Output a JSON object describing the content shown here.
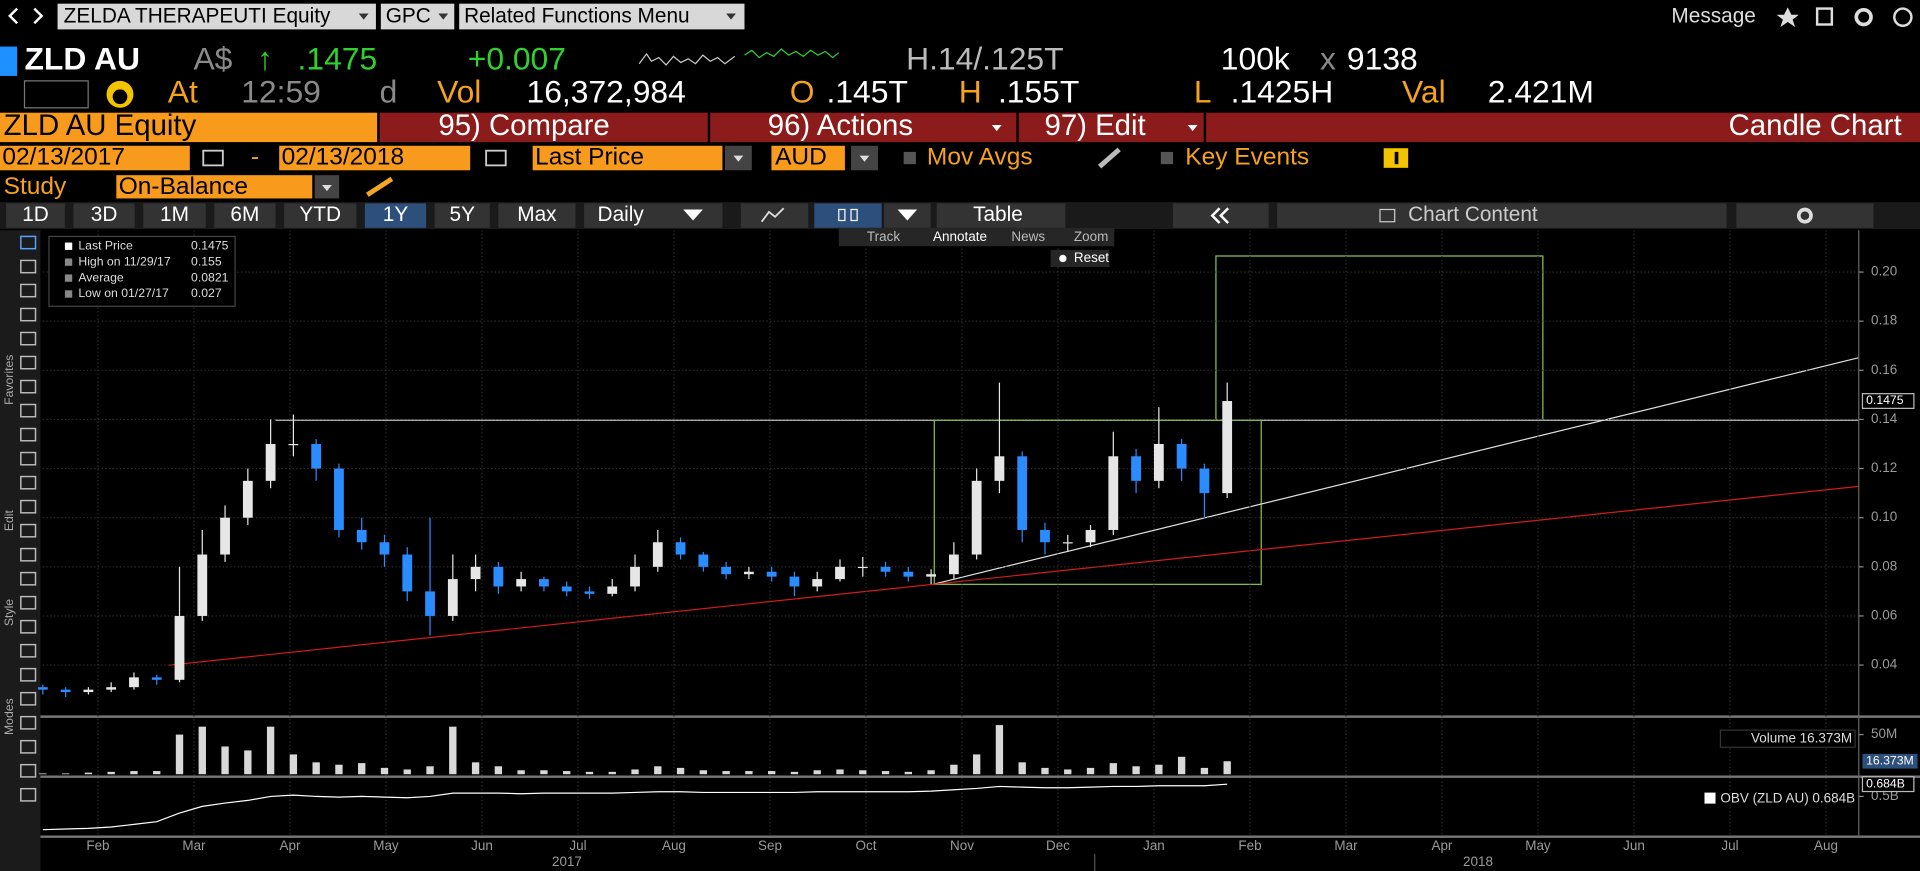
{
  "toolbar": {
    "security": "ZELDA THERAPEUTI Equity",
    "source": "GPC",
    "menu": "Related Functions Menu",
    "message": "Message"
  },
  "quote": {
    "ticker": "ZLD AU",
    "currency": "A$",
    "arrow": "↑",
    "last": ".1475",
    "change": "+0.007",
    "bid_ask": "H.14/.125T",
    "size": "100k",
    "x": "x",
    "size2": "9138",
    "at": "At",
    "time": "12:59",
    "d": "d",
    "vol_label": "Vol",
    "volume": "16,372,984",
    "open_label": "O",
    "open": ".145T",
    "high_label": "H",
    "high": ".155T",
    "low_label": "L",
    "low": ".1425H",
    "val_label": "Val",
    "value": "2.421M"
  },
  "function_bar": {
    "security": "ZLD AU Equity",
    "compare": "95) Compare",
    "actions": "96) Actions",
    "edit": "97) Edit",
    "title": "Candle Chart"
  },
  "settings": {
    "start": "02/13/2017",
    "dash": "-",
    "end": "02/13/2018",
    "field": "Last Price",
    "currency": "AUD",
    "mov_avgs": "Mov Avgs",
    "key_events": "Key Events",
    "study_label": "Study",
    "study": "On-Balance"
  },
  "tabs": [
    "1D",
    "3D",
    "1M",
    "6M",
    "YTD",
    "1Y",
    "5Y",
    "Max"
  ],
  "period": "Daily",
  "table": "Table",
  "chart_content": "Chart Content",
  "chart_tools": [
    "Track",
    "Annotate",
    "News",
    "Zoom"
  ],
  "reset": "Reset",
  "side_labels": [
    "Favorites",
    "Edit",
    "Style",
    "Modes"
  ],
  "chart_data": {
    "type": "candlestick",
    "legend": [
      {
        "label": "Last Price",
        "value": "0.1475"
      },
      {
        "label": "High on 11/29/17",
        "value": "0.155"
      },
      {
        "label": "Average",
        "value": "0.0821"
      },
      {
        "label": "Low on 01/27/17",
        "value": "0.027"
      }
    ],
    "open": [
      0.031,
      0.03,
      0.029,
      0.03,
      0.031,
      0.035,
      0.034,
      0.06,
      0.085,
      0.1,
      0.115,
      0.13,
      0.13,
      0.12,
      0.095,
      0.09,
      0.085,
      0.07,
      0.06,
      0.075,
      0.08,
      0.072,
      0.075,
      0.072,
      0.07,
      0.069,
      0.072,
      0.08,
      0.09,
      0.085,
      0.08,
      0.077,
      0.078,
      0.076,
      0.072,
      0.075,
      0.08,
      0.08,
      0.078,
      0.076,
      0.077,
      0.085,
      0.115,
      0.125,
      0.095,
      0.09,
      0.09,
      0.095,
      0.125,
      0.115,
      0.13,
      0.12,
      0.11
    ],
    "high": [
      0.032,
      0.031,
      0.031,
      0.033,
      0.037,
      0.036,
      0.08,
      0.095,
      0.105,
      0.12,
      0.14,
      0.142,
      0.132,
      0.122,
      0.1,
      0.093,
      0.088,
      0.1,
      0.085,
      0.085,
      0.082,
      0.078,
      0.076,
      0.074,
      0.072,
      0.075,
      0.085,
      0.095,
      0.092,
      0.086,
      0.082,
      0.08,
      0.08,
      0.078,
      0.078,
      0.083,
      0.084,
      0.082,
      0.08,
      0.079,
      0.09,
      0.12,
      0.155,
      0.127,
      0.098,
      0.093,
      0.097,
      0.135,
      0.128,
      0.145,
      0.132,
      0.122,
      0.155
    ],
    "low": [
      0.028,
      0.027,
      0.028,
      0.029,
      0.03,
      0.032,
      0.033,
      0.058,
      0.082,
      0.097,
      0.112,
      0.125,
      0.115,
      0.092,
      0.087,
      0.08,
      0.066,
      0.052,
      0.058,
      0.07,
      0.069,
      0.07,
      0.07,
      0.068,
      0.067,
      0.068,
      0.07,
      0.078,
      0.083,
      0.078,
      0.075,
      0.075,
      0.074,
      0.068,
      0.07,
      0.074,
      0.076,
      0.076,
      0.074,
      0.073,
      0.075,
      0.083,
      0.11,
      0.09,
      0.085,
      0.086,
      0.088,
      0.093,
      0.11,
      0.112,
      0.115,
      0.1,
      0.108
    ],
    "close": [
      0.03,
      0.029,
      0.03,
      0.031,
      0.035,
      0.034,
      0.06,
      0.085,
      0.1,
      0.115,
      0.13,
      0.13,
      0.12,
      0.095,
      0.09,
      0.085,
      0.07,
      0.06,
      0.075,
      0.08,
      0.072,
      0.075,
      0.072,
      0.07,
      0.069,
      0.072,
      0.08,
      0.09,
      0.085,
      0.08,
      0.077,
      0.078,
      0.076,
      0.072,
      0.075,
      0.08,
      0.08,
      0.078,
      0.076,
      0.077,
      0.085,
      0.115,
      0.125,
      0.095,
      0.09,
      0.09,
      0.095,
      0.125,
      0.115,
      0.13,
      0.12,
      0.11,
      0.1475
    ],
    "up_color": "#e6e6e6",
    "down_color": "#2a8cff",
    "ylim": [
      0.02,
      0.217
    ],
    "yticks": [
      {
        "value": 0.04,
        "label": "0.04"
      },
      {
        "value": 0.06,
        "label": "0.06"
      },
      {
        "value": 0.08,
        "label": "0.08"
      },
      {
        "value": 0.1,
        "label": "0.10"
      },
      {
        "value": 0.12,
        "label": "0.12"
      },
      {
        "value": 0.14,
        "label": "0.14"
      },
      {
        "value": 0.16,
        "label": "0.16"
      },
      {
        "value": 0.18,
        "label": "0.18"
      },
      {
        "value": 0.2,
        "label": "0.20"
      }
    ],
    "grid": true,
    "last_label": "0.1475",
    "x_labels": [
      "Feb",
      "Mar",
      "Apr",
      "May",
      "Jun",
      "Jul",
      "Aug",
      "Sep",
      "Oct",
      "Nov",
      "Dec",
      "Jan",
      "Feb",
      "Mar",
      "Apr",
      "May",
      "Jun",
      "Jul",
      "Aug"
    ],
    "years": [
      "2017",
      "2018"
    ],
    "volume": {
      "legend": "Volume 16.373M",
      "last_label": "16.373M",
      "color": "#d8d8d8",
      "values": [
        1,
        1,
        2,
        3,
        4,
        4,
        50,
        60,
        35,
        30,
        60,
        25,
        15,
        12,
        14,
        8,
        6,
        10,
        60,
        15,
        10,
        5,
        5,
        4,
        3,
        3,
        6,
        10,
        8,
        5,
        4,
        4,
        4,
        3,
        5,
        6,
        5,
        4,
        3,
        5,
        12,
        25,
        62,
        15,
        8,
        6,
        8,
        14,
        10,
        12,
        22,
        8,
        16.373
      ],
      "ylim": [
        0,
        68
      ],
      "yticks": [
        {
          "value": 50,
          "label": "50M"
        }
      ]
    },
    "obv": {
      "legend": "OBV (ZLD AU) 0.684B",
      "last_label": "0.684B",
      "color": "#ffffff",
      "values": [
        0.0,
        0.01,
        0.02,
        0.04,
        0.08,
        0.12,
        0.25,
        0.35,
        0.4,
        0.44,
        0.5,
        0.52,
        0.5,
        0.49,
        0.5,
        0.49,
        0.48,
        0.5,
        0.55,
        0.55,
        0.55,
        0.54,
        0.55,
        0.55,
        0.55,
        0.55,
        0.56,
        0.57,
        0.57,
        0.56,
        0.56,
        0.56,
        0.56,
        0.56,
        0.57,
        0.57,
        0.57,
        0.57,
        0.57,
        0.58,
        0.6,
        0.62,
        0.65,
        0.64,
        0.63,
        0.63,
        0.64,
        0.65,
        0.65,
        0.66,
        0.66,
        0.66,
        0.684
      ],
      "ylim": [
        -0.05,
        0.76
      ],
      "yticks": [
        {
          "value": 0.5,
          "label": "0.5B"
        }
      ]
    }
  }
}
